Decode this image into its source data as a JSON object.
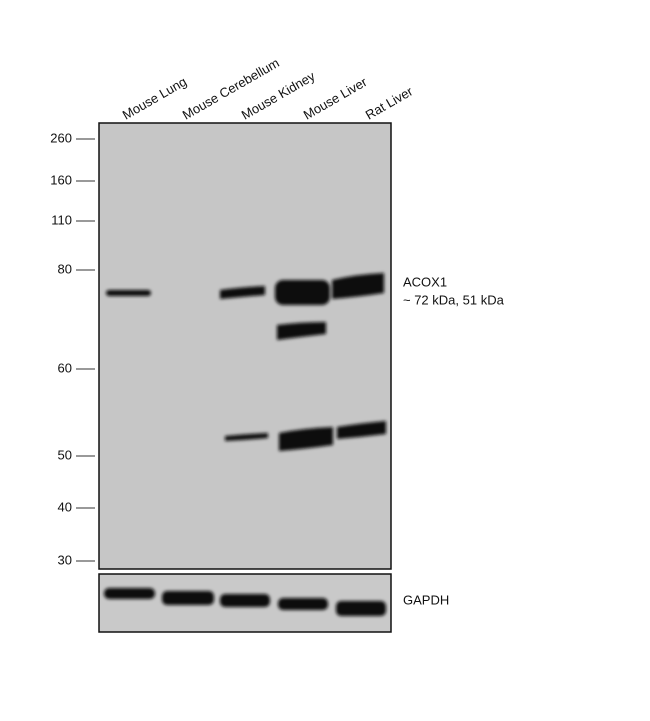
{
  "lanes": [
    "Mouse Lung",
    "Mouse Cerebellum",
    "Mouse Kidney",
    "Mouse Liver",
    "Rat Liver"
  ],
  "markers": [
    "260",
    "160",
    "110",
    "80",
    "60",
    "50",
    "40",
    "30"
  ],
  "target": {
    "name": "ACOX1",
    "size": "~ 72 kDa, 51 kDa"
  },
  "loading_control": "GAPDH"
}
